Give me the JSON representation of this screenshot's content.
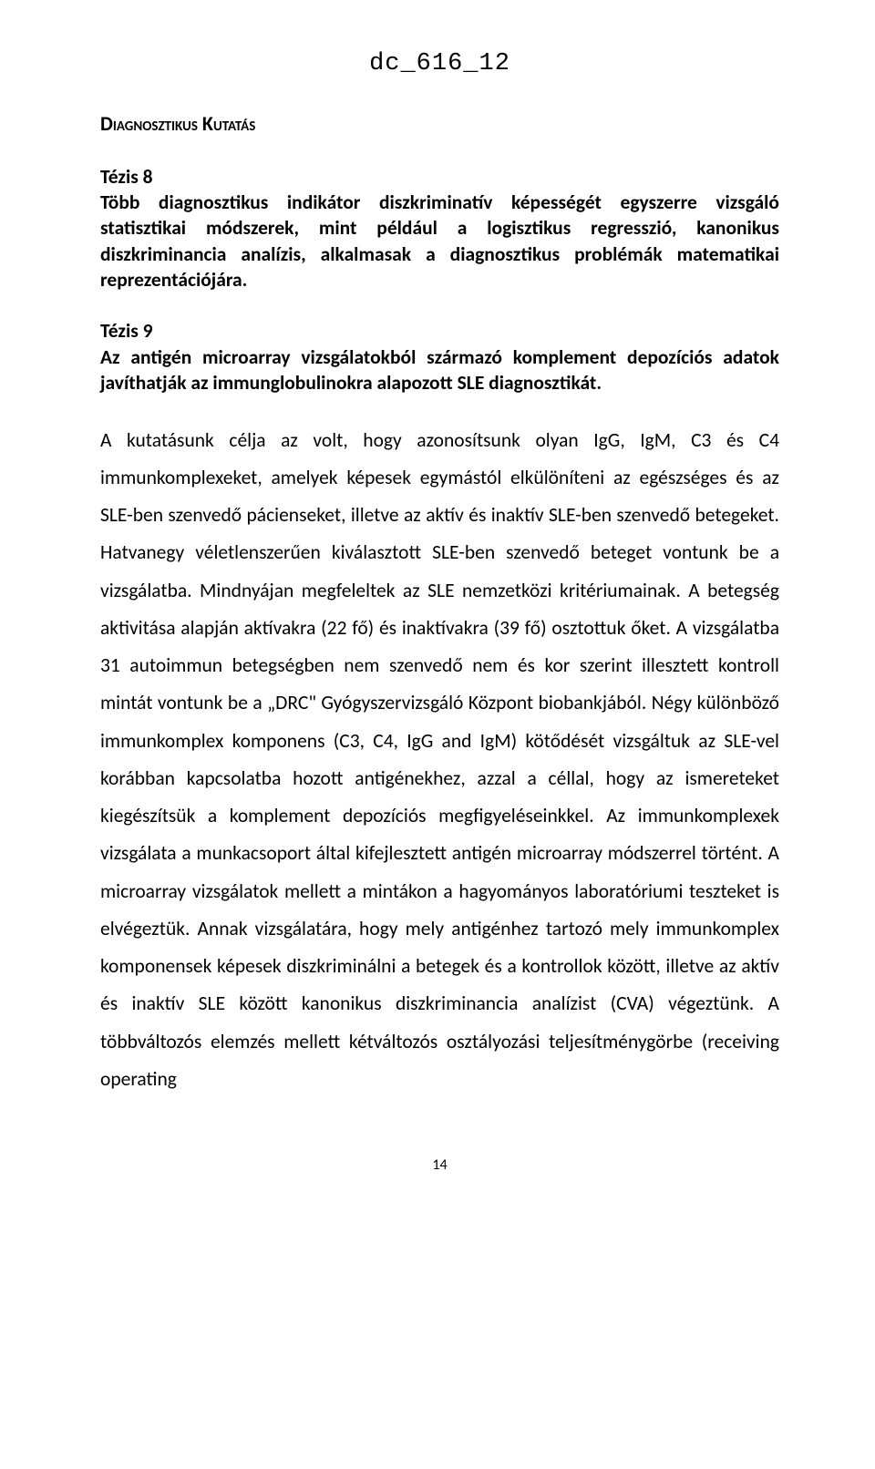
{
  "header_code": "dc_616_12",
  "section_heading": "Diagnosztikus Kutatás",
  "thesis8": {
    "title": "Tézis 8",
    "text": "Több diagnosztikus indikátor diszkriminatív képességét egyszerre vizsgáló statisztikai módszerek, mint például a logisztikus regresszió, kanonikus diszkriminancia analízis, alkalmasak a diagnosztikus problémák matematikai reprezentációjára."
  },
  "thesis9": {
    "title": "Tézis 9",
    "text": "Az antigén microarray vizsgálatokból származó komplement depozíciós adatok javíthatják az immunglobulinokra alapozott SLE diagnosztikát."
  },
  "body": "A kutatásunk célja az volt, hogy azonosítsunk olyan IgG, IgM, C3 és C4 immunkomplexeket, amelyek képesek egymástól elkülöníteni az egészséges és az SLE-ben szenvedő pácienseket, illetve az aktív és inaktív SLE-ben szenvedő betegeket. Hatvanegy véletlenszerűen kiválasztott SLE-ben szenvedő beteget vontunk be a vizsgálatba. Mindnyájan megfeleltek az SLE nemzetközi kritériumainak. A betegség aktivitása alapján aktívakra (22 fő) és inaktívakra (39 fő) osztottuk őket. A vizsgálatba 31 autoimmun betegségben nem szenvedő nem és kor szerint illesztett kontroll mintát vontunk be a „DRC\" Gyógyszervizsgáló Központ biobankjából. Négy különböző immunkomplex komponens (C3, C4, IgG and IgM) kötődését vizsgáltuk az SLE-vel korábban kapcsolatba hozott antigénekhez, azzal a céllal, hogy az ismereteket kiegészítsük a komplement depozíciós megfigyeléseinkkel. Az immunkomplexek vizsgálata a munkacsoport által kifejlesztett antigén microarray módszerrel történt. A microarray vizsgálatok mellett a mintákon a hagyományos laboratóriumi teszteket is elvégeztük. Annak vizsgálatára, hogy mely antigénhez tartozó mely immunkomplex komponensek képesek diszkriminálni a betegek és a kontrollok között, illetve az aktív és inaktív SLE között kanonikus diszkriminancia analízist (CVA) végeztünk. A többváltozós elemzés mellett kétváltozós osztályozási teljesítménygörbe (receiving operating",
  "page_number": "14"
}
